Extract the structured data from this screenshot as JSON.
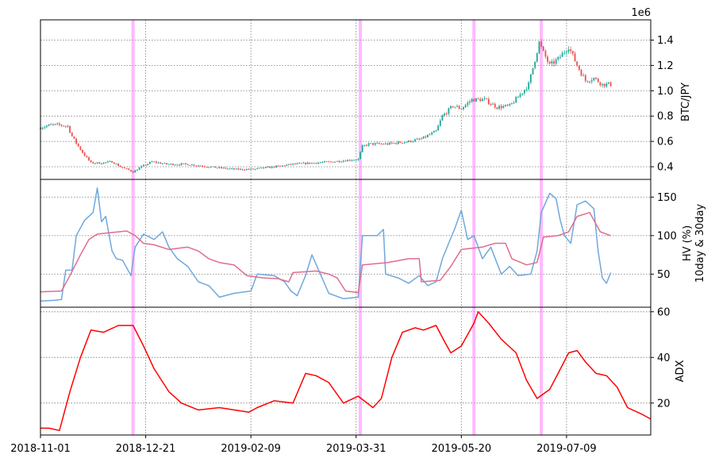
{
  "chart_data": [
    {
      "type": "candlestick",
      "panel": "price",
      "ylabel": "BTC/JPY",
      "y_multiplier": "1e6",
      "ylim": [
        0.3,
        1.56
      ],
      "yticks": [
        0.4,
        0.6,
        0.8,
        1.0,
        1.2,
        1.4
      ],
      "ytick_labels": [
        "0.4",
        "0.6",
        "0.8",
        "1.0",
        "1.2",
        "1.4"
      ],
      "grid": true,
      "up_color": "#26a69a",
      "down_color": "#ef5350",
      "close_anchors": [
        [
          "2018-11-01",
          0.71
        ],
        [
          "2018-11-06",
          0.73
        ],
        [
          "2018-11-10",
          0.73
        ],
        [
          "2018-11-14",
          0.72
        ],
        [
          "2018-11-16",
          0.64
        ],
        [
          "2018-11-19",
          0.56
        ],
        [
          "2018-11-22",
          0.49
        ],
        [
          "2018-11-25",
          0.43
        ],
        [
          "2018-11-30",
          0.43
        ],
        [
          "2018-12-05",
          0.44
        ],
        [
          "2018-12-09",
          0.4
        ],
        [
          "2018-12-15",
          0.36
        ],
        [
          "2018-12-19",
          0.4
        ],
        [
          "2018-12-24",
          0.44
        ],
        [
          "2018-12-31",
          0.42
        ],
        [
          "2019-01-10",
          0.42
        ],
        [
          "2019-01-20",
          0.4
        ],
        [
          "2019-02-01",
          0.38
        ],
        [
          "2019-02-10",
          0.38
        ],
        [
          "2019-02-20",
          0.4
        ],
        [
          "2019-03-01",
          0.42
        ],
        [
          "2019-03-10",
          0.43
        ],
        [
          "2019-03-20",
          0.44
        ],
        [
          "2019-04-01",
          0.46
        ],
        [
          "2019-04-03",
          0.56
        ],
        [
          "2019-04-06",
          0.58
        ],
        [
          "2019-04-15",
          0.58
        ],
        [
          "2019-04-25",
          0.6
        ],
        [
          "2019-05-01",
          0.62
        ],
        [
          "2019-05-08",
          0.68
        ],
        [
          "2019-05-11",
          0.8
        ],
        [
          "2019-05-16",
          0.88
        ],
        [
          "2019-05-20",
          0.86
        ],
        [
          "2019-05-25",
          0.93
        ],
        [
          "2019-05-31",
          0.93
        ],
        [
          "2019-06-06",
          0.87
        ],
        [
          "2019-06-12",
          0.88
        ],
        [
          "2019-06-17",
          0.97
        ],
        [
          "2019-06-21",
          1.05
        ],
        [
          "2019-06-26",
          1.38
        ],
        [
          "2019-06-28",
          1.3
        ],
        [
          "2019-07-01",
          1.2
        ],
        [
          "2019-07-05",
          1.25
        ],
        [
          "2019-07-10",
          1.35
        ],
        [
          "2019-07-14",
          1.2
        ],
        [
          "2019-07-18",
          1.08
        ],
        [
          "2019-07-22",
          1.1
        ],
        [
          "2019-07-26",
          1.05
        ],
        [
          "2019-07-30",
          1.05
        ]
      ]
    },
    {
      "type": "line",
      "panel": "volatility",
      "ylabel": "HV (%)",
      "ylabel2": "10day & 30day",
      "ylim": [
        7,
        173
      ],
      "yticks": [
        50,
        100,
        150
      ],
      "ytick_labels": [
        "50",
        "100",
        "150"
      ],
      "grid": true,
      "series": [
        {
          "label": "10day",
          "color": "#6fa8dc",
          "points": [
            [
              "2018-11-01",
              15
            ],
            [
              "2018-11-08",
              16
            ],
            [
              "2018-11-11",
              17
            ],
            [
              "2018-11-13",
              55
            ],
            [
              "2018-11-16",
              55
            ],
            [
              "2018-11-18",
              100
            ],
            [
              "2018-11-22",
              120
            ],
            [
              "2018-11-26",
              130
            ],
            [
              "2018-11-28",
              162
            ],
            [
              "2018-11-30",
              118
            ],
            [
              "2018-12-02",
              125
            ],
            [
              "2018-12-05",
              80
            ],
            [
              "2018-12-07",
              70
            ],
            [
              "2018-12-10",
              68
            ],
            [
              "2018-12-12",
              58
            ],
            [
              "2018-12-14",
              48
            ],
            [
              "2018-12-16",
              85
            ],
            [
              "2018-12-20",
              102
            ],
            [
              "2018-12-25",
              95
            ],
            [
              "2018-12-29",
              105
            ],
            [
              "2019-01-01",
              85
            ],
            [
              "2019-01-05",
              70
            ],
            [
              "2019-01-10",
              60
            ],
            [
              "2019-01-15",
              40
            ],
            [
              "2019-01-20",
              35
            ],
            [
              "2019-01-25",
              20
            ],
            [
              "2019-02-01",
              25
            ],
            [
              "2019-02-09",
              28
            ],
            [
              "2019-02-12",
              50
            ],
            [
              "2019-02-20",
              48
            ],
            [
              "2019-02-25",
              40
            ],
            [
              "2019-02-28",
              28
            ],
            [
              "2019-03-03",
              22
            ],
            [
              "2019-03-07",
              48
            ],
            [
              "2019-03-10",
              75
            ],
            [
              "2019-03-14",
              50
            ],
            [
              "2019-03-18",
              25
            ],
            [
              "2019-03-25",
              18
            ],
            [
              "2019-04-01",
              20
            ],
            [
              "2019-04-03",
              100
            ],
            [
              "2019-04-10",
              100
            ],
            [
              "2019-04-13",
              108
            ],
            [
              "2019-04-14",
              50
            ],
            [
              "2019-04-20",
              45
            ],
            [
              "2019-04-25",
              38
            ],
            [
              "2019-04-30",
              48
            ],
            [
              "2019-05-04",
              35
            ],
            [
              "2019-05-08",
              40
            ],
            [
              "2019-05-11",
              70
            ],
            [
              "2019-05-14",
              90
            ],
            [
              "2019-05-17",
              110
            ],
            [
              "2019-05-20",
              133
            ],
            [
              "2019-05-23",
              95
            ],
            [
              "2019-05-26",
              100
            ],
            [
              "2019-05-30",
              70
            ],
            [
              "2019-06-03",
              85
            ],
            [
              "2019-06-08",
              50
            ],
            [
              "2019-06-12",
              60
            ],
            [
              "2019-06-16",
              48
            ],
            [
              "2019-06-22",
              50
            ],
            [
              "2019-06-25",
              80
            ],
            [
              "2019-06-27",
              130
            ],
            [
              "2019-07-01",
              155
            ],
            [
              "2019-07-04",
              148
            ],
            [
              "2019-07-06",
              120
            ],
            [
              "2019-07-08",
              100
            ],
            [
              "2019-07-11",
              90
            ],
            [
              "2019-07-14",
              140
            ],
            [
              "2019-07-18",
              145
            ],
            [
              "2019-07-22",
              135
            ],
            [
              "2019-07-24",
              80
            ],
            [
              "2019-07-26",
              45
            ],
            [
              "2019-07-28",
              38
            ],
            [
              "2019-07-30",
              52
            ]
          ]
        },
        {
          "label": "30day",
          "color": "#e06c8f",
          "points": [
            [
              "2018-11-01",
              27
            ],
            [
              "2018-11-11",
              28
            ],
            [
              "2018-11-15",
              48
            ],
            [
              "2018-11-20",
              75
            ],
            [
              "2018-11-24",
              95
            ],
            [
              "2018-11-28",
              102
            ],
            [
              "2018-12-05",
              104
            ],
            [
              "2018-12-12",
              106
            ],
            [
              "2018-12-16",
              100
            ],
            [
              "2018-12-20",
              90
            ],
            [
              "2018-12-25",
              88
            ],
            [
              "2019-01-01",
              82
            ],
            [
              "2019-01-10",
              85
            ],
            [
              "2019-01-15",
              80
            ],
            [
              "2019-01-20",
              70
            ],
            [
              "2019-01-25",
              65
            ],
            [
              "2019-02-01",
              62
            ],
            [
              "2019-02-07",
              48
            ],
            [
              "2019-02-15",
              45
            ],
            [
              "2019-02-22",
              44
            ],
            [
              "2019-02-27",
              40
            ],
            [
              "2019-03-01",
              52
            ],
            [
              "2019-03-12",
              54
            ],
            [
              "2019-03-18",
              50
            ],
            [
              "2019-03-22",
              45
            ],
            [
              "2019-03-26",
              28
            ],
            [
              "2019-04-01",
              26
            ],
            [
              "2019-04-03",
              62
            ],
            [
              "2019-04-15",
              65
            ],
            [
              "2019-04-25",
              70
            ],
            [
              "2019-04-30",
              70
            ],
            [
              "2019-05-01",
              40
            ],
            [
              "2019-05-10",
              42
            ],
            [
              "2019-05-15",
              60
            ],
            [
              "2019-05-20",
              82
            ],
            [
              "2019-05-30",
              85
            ],
            [
              "2019-06-05",
              90
            ],
            [
              "2019-06-10",
              90
            ],
            [
              "2019-06-13",
              70
            ],
            [
              "2019-06-20",
              62
            ],
            [
              "2019-06-25",
              65
            ],
            [
              "2019-06-28",
              98
            ],
            [
              "2019-07-05",
              100
            ],
            [
              "2019-07-10",
              105
            ],
            [
              "2019-07-14",
              125
            ],
            [
              "2019-07-20",
              130
            ],
            [
              "2019-07-25",
              105
            ],
            [
              "2019-07-30",
              100
            ]
          ]
        }
      ]
    },
    {
      "type": "line",
      "panel": "adx",
      "ylabel": "ADX",
      "ylim": [
        6,
        62
      ],
      "yticks": [
        20,
        40,
        60
      ],
      "ytick_labels": [
        "20",
        "40",
        "60"
      ],
      "grid": true,
      "series": [
        {
          "label": "ADX",
          "color": "#ff0000",
          "points": [
            [
              "2018-11-01",
              9
            ],
            [
              "2018-11-05",
              9
            ],
            [
              "2018-11-10",
              8
            ],
            [
              "2018-11-15",
              25
            ],
            [
              "2018-11-20",
              40
            ],
            [
              "2018-11-25",
              52
            ],
            [
              "2018-12-01",
              51
            ],
            [
              "2018-12-08",
              54
            ],
            [
              "2018-12-15",
              54
            ],
            [
              "2018-12-20",
              45
            ],
            [
              "2018-12-25",
              35
            ],
            [
              "2019-01-01",
              25
            ],
            [
              "2019-01-07",
              20
            ],
            [
              "2019-01-15",
              17
            ],
            [
              "2019-01-25",
              18
            ],
            [
              "2019-02-01",
              17
            ],
            [
              "2019-02-08",
              16
            ],
            [
              "2019-02-12",
              18
            ],
            [
              "2019-02-20",
              21
            ],
            [
              "2019-03-01",
              20
            ],
            [
              "2019-03-07",
              33
            ],
            [
              "2019-03-12",
              32
            ],
            [
              "2019-03-18",
              29
            ],
            [
              "2019-03-25",
              20
            ],
            [
              "2019-04-01",
              23
            ],
            [
              "2019-04-08",
              18
            ],
            [
              "2019-04-12",
              22
            ],
            [
              "2019-04-17",
              40
            ],
            [
              "2019-04-22",
              51
            ],
            [
              "2019-04-28",
              53
            ],
            [
              "2019-05-02",
              52
            ],
            [
              "2019-05-08",
              54
            ],
            [
              "2019-05-12",
              47
            ],
            [
              "2019-05-15",
              42
            ],
            [
              "2019-05-20",
              45
            ],
            [
              "2019-05-26",
              55
            ],
            [
              "2019-05-28",
              60
            ],
            [
              "2019-06-02",
              55
            ],
            [
              "2019-06-08",
              48
            ],
            [
              "2019-06-15",
              42
            ],
            [
              "2019-06-20",
              30
            ],
            [
              "2019-06-25",
              22
            ],
            [
              "2019-07-01",
              26
            ],
            [
              "2019-07-05",
              33
            ],
            [
              "2019-07-10",
              42
            ],
            [
              "2019-07-14",
              43
            ],
            [
              "2019-07-18",
              38
            ],
            [
              "2019-07-23",
              33
            ],
            [
              "2019-07-28",
              32
            ],
            [
              "2019-08-02",
              27
            ],
            [
              "2019-08-07",
              18
            ],
            [
              "2019-08-14",
              15
            ],
            [
              "2019-08-18",
              13
            ]
          ]
        }
      ]
    }
  ],
  "x_axis": {
    "start": "2018-11-01",
    "end": "2019-08-18",
    "ticks": [
      "2018-11-01",
      "2018-12-21",
      "2019-02-09",
      "2019-03-31",
      "2019-05-20",
      "2019-07-09"
    ],
    "tick_labels": [
      "2018-11-01",
      "2018-12-21",
      "2019-02-09",
      "2019-03-31",
      "2019-05-20",
      "2019-07-09"
    ]
  },
  "highlights": {
    "color": "#ff80ff",
    "dates": [
      "2018-12-15",
      "2019-04-02",
      "2019-05-26",
      "2019-06-27"
    ]
  }
}
